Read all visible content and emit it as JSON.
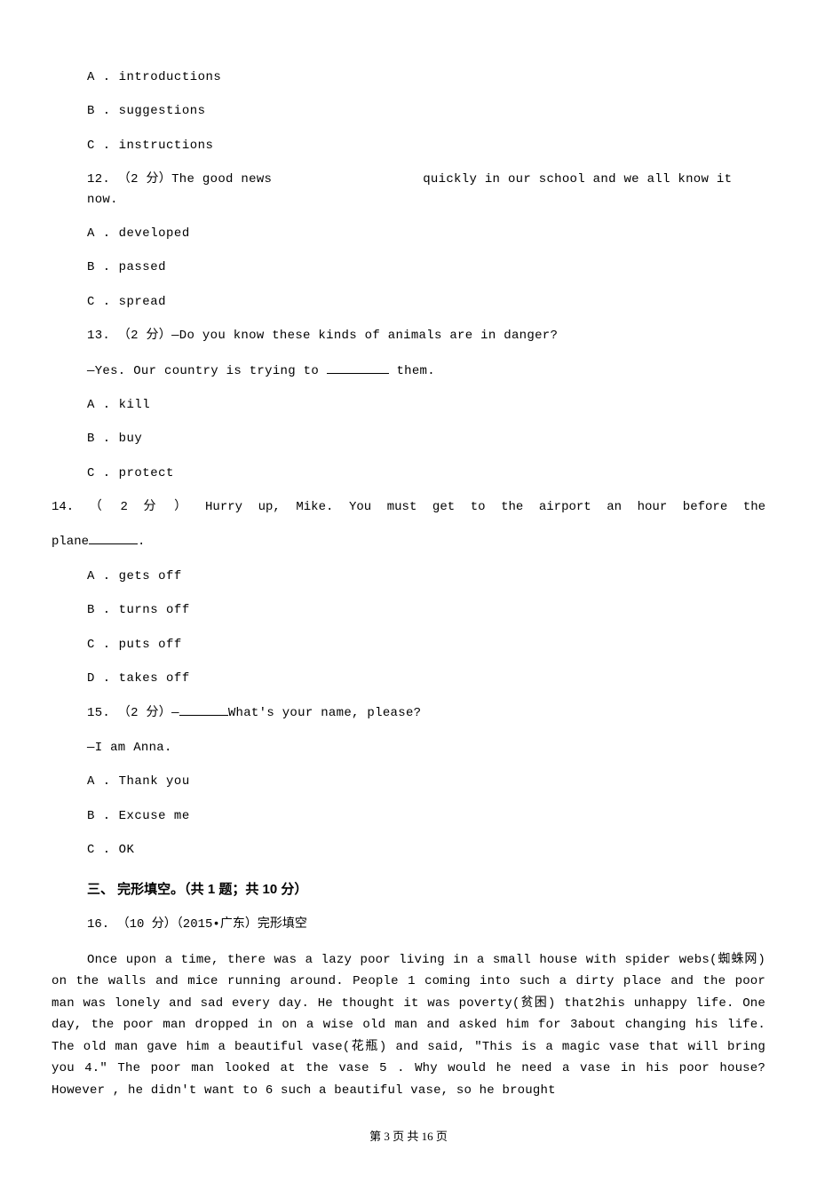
{
  "q11": {
    "options": {
      "A": "A . introductions",
      "B": "B . suggestions",
      "C": "C . instructions"
    }
  },
  "q12": {
    "stem_pre": "12. （2 分）The good news",
    "stem_post": "quickly in our school and we all know it now.",
    "options": {
      "A": "A . developed",
      "B": "B . passed",
      "C": "C . spread"
    }
  },
  "q13": {
    "stem1": "13. （2 分）—Do you know these kinds of animals are in danger?",
    "stem2_pre": "—Yes. Our country is trying to ",
    "stem2_post": " them.",
    "options": {
      "A": "A . kill",
      "B": "B . buy",
      "C": "C . protect"
    }
  },
  "q14": {
    "stem_line1": "    14. （ 2 分 ） Hurry up,  Mike.  You  must  get  to  the  airport  an  hour  before  the",
    "stem_line2_pre": "plane",
    "stem_line2_post": ".",
    "options": {
      "A": "A . gets off",
      "B": "B . turns off",
      "C": "C . puts off",
      "D": "D . takes off"
    }
  },
  "q15": {
    "stem1_pre": "15. （2 分）—",
    "stem1_post": "What's your name, please?",
    "stem2": "—I am Anna.",
    "options": {
      "A": "A . Thank you",
      "B": "B . Excuse me",
      "C": "C . OK"
    }
  },
  "section3": {
    "title": "三、 完形填空。（共 1 题；共 10 分）"
  },
  "q16": {
    "intro": "16. （10 分）（2015•广东）完形填空",
    "passage": "Once upon a time, there was a lazy poor living in a small house with spider webs(蜘蛛网) on the walls and mice running around. People 1 coming into such a dirty place and the poor man was lonely and sad every day. He thought it was poverty(贫困) that2his unhappy life.   One day, the poor man dropped in on a wise old man and asked him for 3about changing his life. The old man gave him a beautiful vase(花瓶) and said, \"This is a magic vase that will bring you 4.\"   The poor man looked at the vase 5 . Why would he need a vase in his poor house? However , he didn't want to 6 such a beautiful vase, so he brought"
  },
  "footer": "第 3 页 共 16 页"
}
